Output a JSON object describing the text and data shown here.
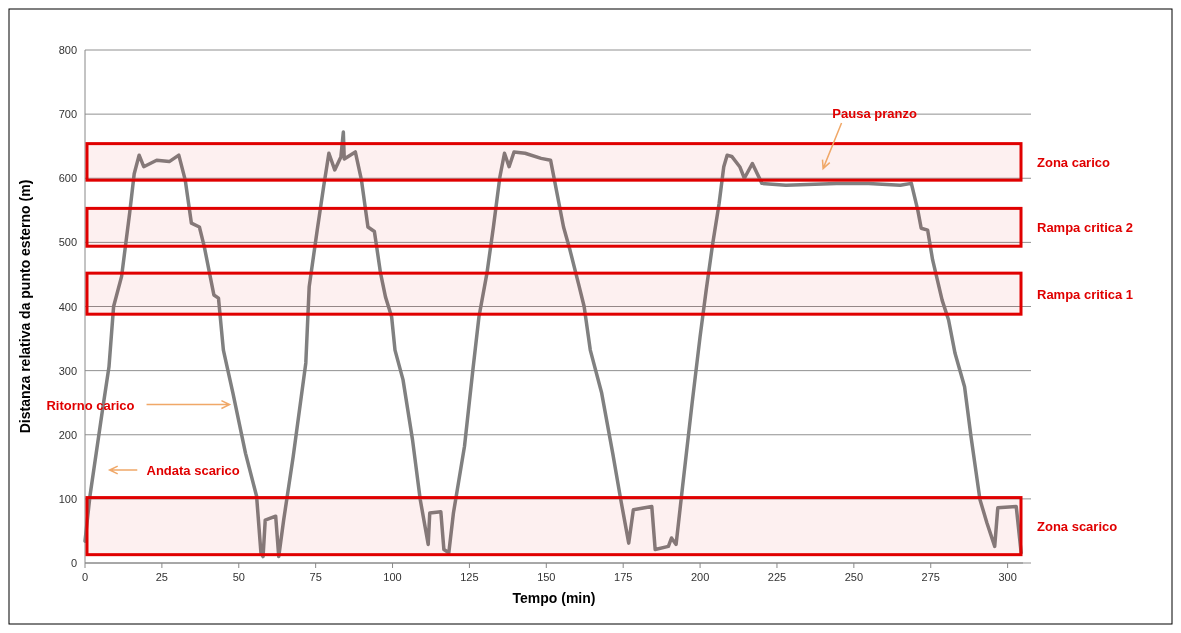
{
  "chart_data": {
    "type": "line",
    "xlabel": "Tempo (min)",
    "ylabel": "Distanza relativa da punto esterno (m)",
    "xlim": [
      0,
      305
    ],
    "xticks": [
      0,
      25,
      50,
      75,
      100,
      125,
      150,
      175,
      200,
      225,
      250,
      275,
      300
    ],
    "ylim": [
      0,
      800
    ],
    "yticks": [
      0,
      100,
      200,
      300,
      400,
      500,
      600,
      700,
      800
    ],
    "grid": "y",
    "marker": "none",
    "line_style": "solid",
    "series": [
      {
        "color": "#808080",
        "x": [
          0,
          1.6,
          5.7,
          7.8,
          9.3,
          11.9,
          14.5,
          16.0,
          17.6,
          19.1,
          23.3,
          27.4,
          30.5,
          32.6,
          34.6,
          37.2,
          38.8,
          41.9,
          43.4,
          45.0,
          48.1,
          52.2,
          55.8,
          57.2,
          57.9,
          58.6,
          62.0,
          63.0,
          64.6,
          67.7,
          71.8,
          72.9,
          75.5,
          77.6,
          79.3,
          81.2,
          83.2,
          84.0,
          84.3,
          87.9,
          89.9,
          92.0,
          94.1,
          96.1,
          97.7,
          99.7,
          100.8,
          103.4,
          106.5,
          109.0,
          111.6,
          112.1,
          115.7,
          116.7,
          118.3,
          119.8,
          123.4,
          126.0,
          128.1,
          130.7,
          132.8,
          134.9,
          136.4,
          137.9,
          139.5,
          143.1,
          148.3,
          151.4,
          153.5,
          155.6,
          157.7,
          160.7,
          162.3,
          164.3,
          168.0,
          171.6,
          174.2,
          176.8,
          178.3,
          184.3,
          185.4,
          189.7,
          190.7,
          192.2,
          194.3,
          197.4,
          200.0,
          202.0,
          204.1,
          206.2,
          207.7,
          208.8,
          210.3,
          212.9,
          214.4,
          217.0,
          220.1,
          227.9,
          244.4,
          254.8,
          265.1,
          268.7,
          270.8,
          271.9,
          274.0,
          275.6,
          278.7,
          280.8,
          282.9,
          286.0,
          288.1,
          291.0,
          293.3,
          295.8,
          296.8,
          302.8,
          304.4
        ],
        "values": [
          34,
          104,
          239,
          306,
          400,
          447,
          545,
          607,
          636,
          618,
          628,
          626,
          636,
          597,
          530,
          524,
          493,
          418,
          413,
          332,
          265,
          171,
          104,
          16,
          10,
          67,
          73,
          10,
          67,
          166,
          312,
          431,
          519,
          587,
          639,
          613,
          633,
          672,
          630,
          641,
          597,
          524,
          517,
          452,
          415,
          384,
          332,
          286,
          192,
          99,
          29,
          78,
          80,
          21,
          16,
          78,
          182,
          296,
          384,
          452,
          524,
          602,
          639,
          618,
          641,
          639,
          631,
          628,
          576,
          524,
          488,
          431,
          400,
          332,
          265,
          171,
          99,
          31,
          83,
          88,
          21,
          26,
          39,
          29,
          119,
          249,
          353,
          426,
          498,
          561,
          618,
          636,
          634,
          618,
          600,
          623,
          592,
          589,
          592,
          592,
          589,
          592,
          550,
          522,
          519,
          473,
          410,
          379,
          327,
          275,
          197,
          99,
          62,
          26,
          86,
          88,
          16
        ]
      }
    ],
    "bands": [
      {
        "axis": "y",
        "from": 597,
        "to": 654,
        "label": "Zona carico",
        "color": "#e00000"
      },
      {
        "axis": "y",
        "from": 494,
        "to": 553,
        "label": "Rampa critica 2",
        "color": "#e00000"
      },
      {
        "axis": "y",
        "from": 388,
        "to": 452,
        "label": "Rampa critica 1",
        "color": "#e00000"
      },
      {
        "axis": "y",
        "from": 13,
        "to": 102,
        "label": "Zona scarico",
        "color": "#e00000"
      }
    ],
    "annotations": [
      "Pausa pranzo",
      {
        "text": "Ritorno carico",
        "x": 47,
        "y": 247
      },
      "Andata scarico"
    ]
  }
}
